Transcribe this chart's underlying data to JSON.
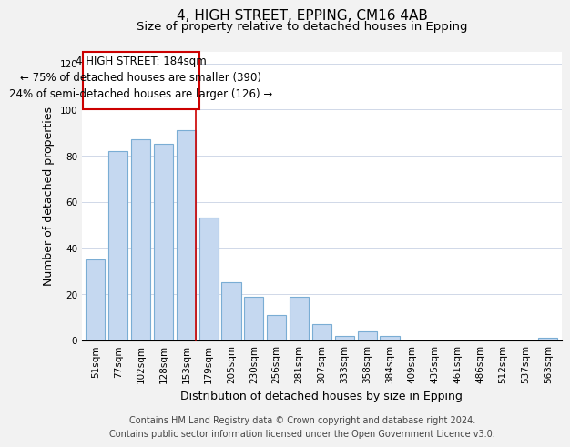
{
  "title": "4, HIGH STREET, EPPING, CM16 4AB",
  "subtitle": "Size of property relative to detached houses in Epping",
  "xlabel": "Distribution of detached houses by size in Epping",
  "ylabel": "Number of detached properties",
  "bar_labels": [
    "51sqm",
    "77sqm",
    "102sqm",
    "128sqm",
    "153sqm",
    "179sqm",
    "205sqm",
    "230sqm",
    "256sqm",
    "281sqm",
    "307sqm",
    "333sqm",
    "358sqm",
    "384sqm",
    "409sqm",
    "435sqm",
    "461sqm",
    "486sqm",
    "512sqm",
    "537sqm",
    "563sqm"
  ],
  "bar_values": [
    35,
    82,
    87,
    85,
    91,
    53,
    25,
    19,
    11,
    19,
    7,
    2,
    4,
    2,
    0,
    0,
    0,
    0,
    0,
    0,
    1
  ],
  "bar_color": "#c5d8f0",
  "bar_edge_color": "#7aadd4",
  "highlight_bar_index": 5,
  "highlight_line_color": "#cc0000",
  "ylim": [
    0,
    125
  ],
  "yticks": [
    0,
    20,
    40,
    60,
    80,
    100,
    120
  ],
  "annotation_title": "4 HIGH STREET: 184sqm",
  "annotation_line1": "← 75% of detached houses are smaller (390)",
  "annotation_line2": "24% of semi-detached houses are larger (126) →",
  "footer_line1": "Contains HM Land Registry data © Crown copyright and database right 2024.",
  "footer_line2": "Contains public sector information licensed under the Open Government Licence v3.0.",
  "background_color": "#f2f2f2",
  "plot_background": "#ffffff",
  "grid_color": "#d0d8e8",
  "title_fontsize": 11,
  "subtitle_fontsize": 9.5,
  "axis_label_fontsize": 9,
  "tick_fontsize": 7.5,
  "footer_fontsize": 7,
  "annotation_fontsize": 8.5
}
